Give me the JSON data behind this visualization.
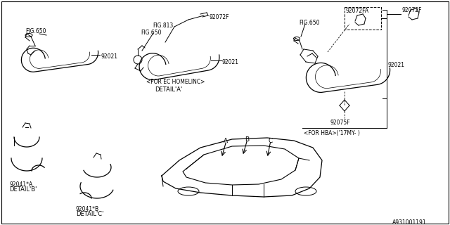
{
  "background_color": "#ffffff",
  "line_color": "#000000",
  "text_color": "#000000",
  "part_numbers": {
    "fig650_top_left": "FIG.650",
    "part92021_left": "92021",
    "fig813": "FIG.813",
    "fig650_mid": "FIG.650",
    "part92072F_mid": "92072F",
    "part92021_mid": "92021",
    "for_ec": "<FOR EC HOMELINC>",
    "detail_a": "DETAIL'A'",
    "fig650_right": "FIG.650",
    "part92072FA": "92072FA",
    "part92072F_right": "92072F",
    "part92021_right": "92021",
    "part92075F": "92075F",
    "for_hba": "<FOR HBA>('17MY- )",
    "part92041A": "92041*A",
    "detail_b": "DETAIL'B'",
    "part92041B": "92041*B",
    "detail_c": "DETAIL'C'",
    "diagram_id": "A931001191",
    "point_a": "A",
    "point_b": "B",
    "point_c": "C"
  },
  "figsize": [
    6.4,
    3.2
  ],
  "dpi": 100
}
